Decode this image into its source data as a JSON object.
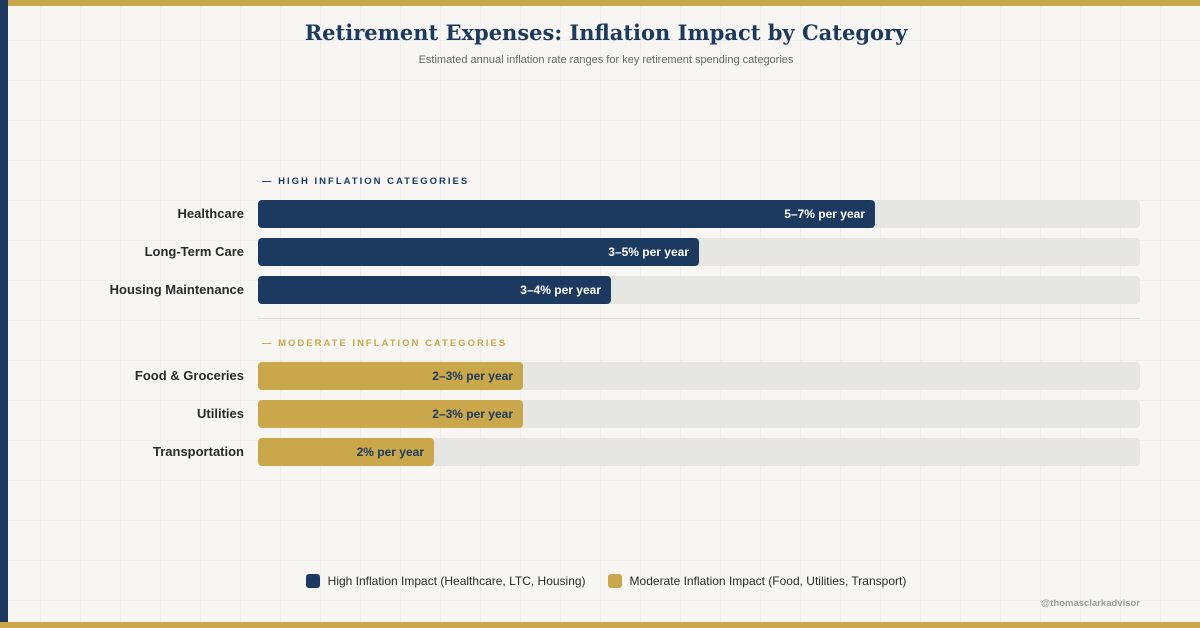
{
  "chart_data": {
    "type": "bar",
    "orientation": "horizontal",
    "title": "Retirement Expenses: Inflation Impact by Category",
    "subtitle": "Estimated annual inflation rate ranges for key retirement spending categories",
    "xlim": [
      0,
      10
    ],
    "groups": [
      {
        "key": "high",
        "label": "— HIGH INFLATION CATEGORIES",
        "color": "#1c3a60",
        "items": [
          {
            "category": "Healthcare",
            "low": 5,
            "high": 7,
            "value": 7,
            "label": "5–7% per year"
          },
          {
            "category": "Long-Term Care",
            "low": 3,
            "high": 5,
            "value": 5,
            "label": "3–5% per year"
          },
          {
            "category": "Housing Maintenance",
            "low": 3,
            "high": 4,
            "value": 4,
            "label": "3–4% per year"
          }
        ]
      },
      {
        "key": "moderate",
        "label": "— MODERATE INFLATION CATEGORIES",
        "color": "#c9a74a",
        "items": [
          {
            "category": "Food & Groceries",
            "low": 2,
            "high": 3,
            "value": 3,
            "label": "2–3% per year"
          },
          {
            "category": "Utilities",
            "low": 2,
            "high": 3,
            "value": 3,
            "label": "2–3% per year"
          },
          {
            "category": "Transportation",
            "low": 2,
            "high": 2,
            "value": 2,
            "label": "2% per year"
          }
        ]
      }
    ],
    "legend": [
      {
        "name": "High Inflation Impact (Healthcare, LTC, Housing)",
        "color": "#1c3a60"
      },
      {
        "name": "Moderate Inflation Impact (Food, Utilities, Transport)",
        "color": "#c9a74a"
      }
    ],
    "legend_position": "bottom",
    "grid": true
  },
  "watermark": "@thomasclarkadvisor",
  "colors": {
    "accent_gold": "#c9a74a",
    "accent_navy": "#1c3a60",
    "background": "#f7f6f2",
    "track": "#e6e6e2"
  }
}
